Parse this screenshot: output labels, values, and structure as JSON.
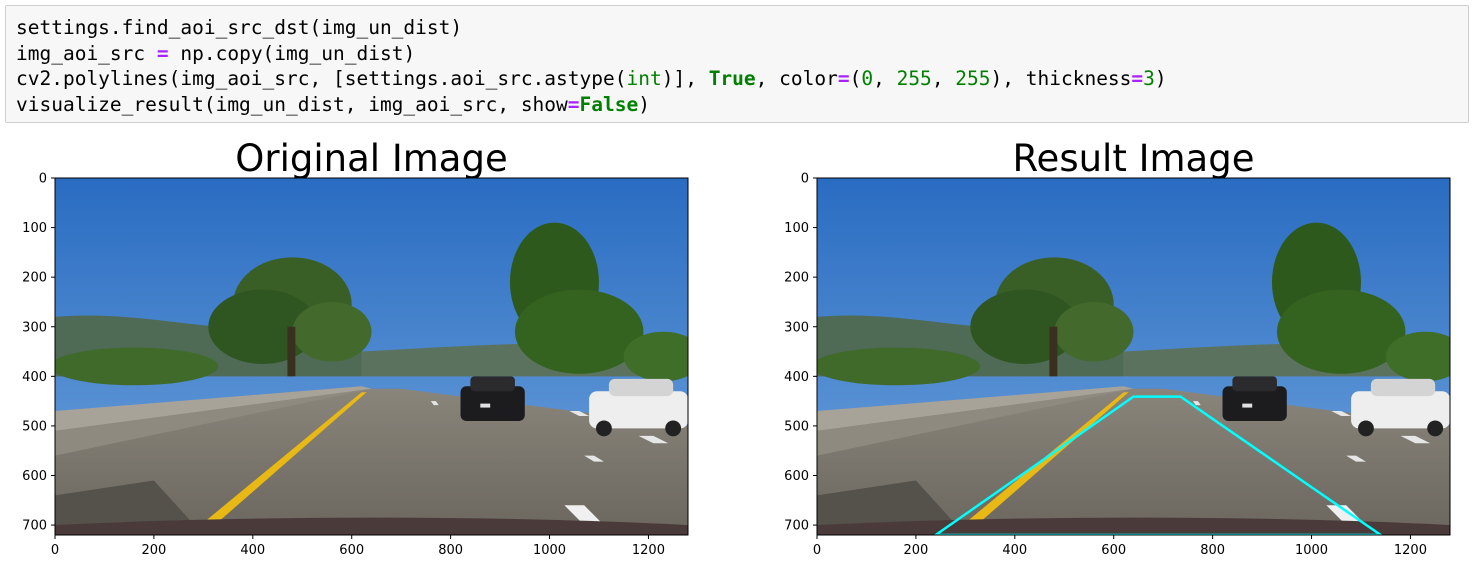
{
  "code_cell": {
    "lines": [
      [
        {
          "t": "settings.find_aoi_src_dst(img_un_dist)",
          "c": ""
        }
      ],
      [
        {
          "t": "img_aoi_src ",
          "c": ""
        },
        {
          "t": "=",
          "c": "op"
        },
        {
          "t": " np.copy(img_un_dist)",
          "c": ""
        }
      ],
      [
        {
          "t": "cv2.polylines(img_aoi_src, [settings.aoi_src.astype(",
          "c": ""
        },
        {
          "t": "int",
          "c": "bi"
        },
        {
          "t": ")], ",
          "c": ""
        },
        {
          "t": "True",
          "c": "kw"
        },
        {
          "t": ", color",
          "c": ""
        },
        {
          "t": "=",
          "c": "op"
        },
        {
          "t": "(",
          "c": ""
        },
        {
          "t": "0",
          "c": "num"
        },
        {
          "t": ", ",
          "c": ""
        },
        {
          "t": "255",
          "c": "num"
        },
        {
          "t": ", ",
          "c": ""
        },
        {
          "t": "255",
          "c": "num"
        },
        {
          "t": "), thickness",
          "c": ""
        },
        {
          "t": "=",
          "c": "op"
        },
        {
          "t": "3",
          "c": "num"
        },
        {
          "t": ")",
          "c": ""
        }
      ],
      [
        {
          "t": "visualize_result(img_un_dist, img_aoi_src, show",
          "c": ""
        },
        {
          "t": "=",
          "c": "op"
        },
        {
          "t": "False",
          "c": "kw"
        },
        {
          "t": ")",
          "c": ""
        }
      ]
    ]
  },
  "plots": [
    {
      "title": "Original Image",
      "x_ticks": [
        0,
        200,
        400,
        600,
        800,
        1000,
        1200
      ],
      "y_ticks": [
        0,
        100,
        200,
        300,
        400,
        500,
        600,
        700
      ],
      "xlim": [
        0,
        1280
      ],
      "ylim": [
        720,
        0
      ],
      "show_polygon": false
    },
    {
      "title": "Result Image",
      "x_ticks": [
        0,
        200,
        400,
        600,
        800,
        1000,
        1200
      ],
      "y_ticks": [
        0,
        100,
        200,
        300,
        400,
        500,
        600,
        700
      ],
      "xlim": [
        0,
        1280
      ],
      "ylim": [
        720,
        0
      ],
      "show_polygon": true,
      "polygon": [
        [
          240,
          720
        ],
        [
          640,
          441
        ],
        [
          735,
          441
        ],
        [
          1140,
          720
        ]
      ],
      "polygon_color": "#00ffff"
    }
  ],
  "scene_colors": {
    "sky": "#3d7fcf",
    "sky_top": "#2a6cc2",
    "hills": "#4f6a55",
    "trees": "#2f5a1f",
    "road": "#7e786e",
    "lane_yellow": "#e8b814",
    "car_black": "#1c1c1e",
    "car_white": "#eeeeee"
  }
}
